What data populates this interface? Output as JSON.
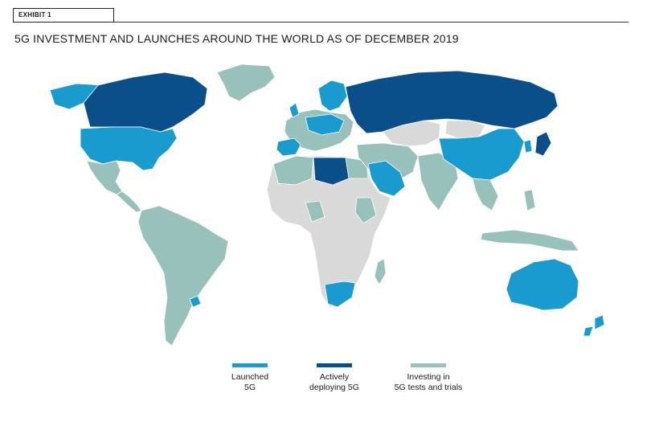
{
  "header": {
    "exhibit_label": "EXHIBIT 1",
    "title": "5G INVESTMENT AND LAUNCHES AROUND THE WORLD AS OF DECEMBER 2019"
  },
  "colors": {
    "launched": "#1a9bd0",
    "deploying": "#0a4f8a",
    "investing": "#97c1ba",
    "none": "#d9d9d9"
  },
  "legend": [
    {
      "label": "Launched\n5G",
      "status": "launched"
    },
    {
      "label": "Actively\ndeploying 5G",
      "status": "deploying"
    },
    {
      "label": "Investing in\n5G tests and trials",
      "status": "investing"
    }
  ],
  "regions": {
    "alaska": "launched",
    "canada": "deploying",
    "greenland": "investing",
    "usa": "launched",
    "mexico": "investing",
    "central_america": "investing",
    "south_america": "investing",
    "uruguay": "launched",
    "africa": "none",
    "north_africa": "investing",
    "libya": "deploying",
    "west_africa": "investing",
    "south_africa": "launched",
    "madagascar": "investing",
    "europe": "investing",
    "scandinavia": "launched",
    "spain": "launched",
    "central_europe": "launched",
    "russia": "deploying",
    "kazakhstan": "none",
    "middle_east": "investing",
    "saudi_arabia": "launched",
    "india": "investing",
    "china": "launched",
    "japan": "deploying",
    "korea": "launched",
    "southeast_asia": "investing",
    "australia": "launched",
    "new_zealand": "launched"
  }
}
